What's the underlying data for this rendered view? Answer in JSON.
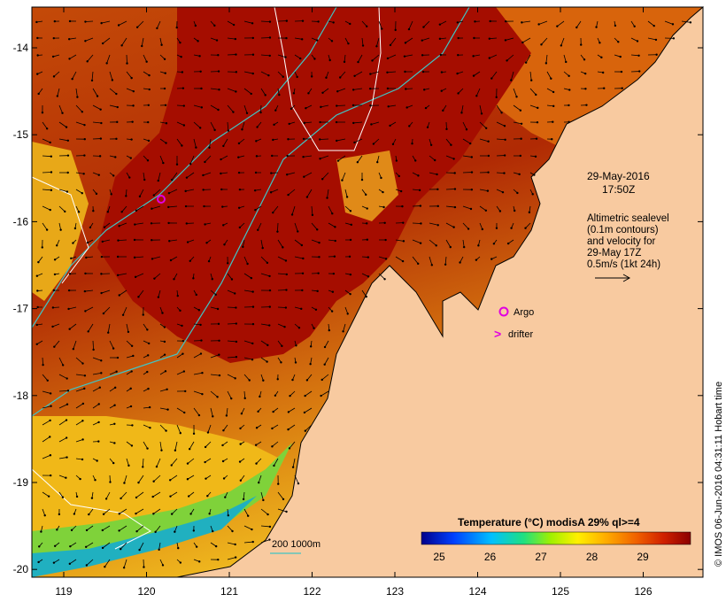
{
  "map": {
    "date_label": "29-May-2016",
    "time_label": "17:50Z",
    "legend_lines": [
      "Altimetric sealevel",
      "(0.1m contours)",
      "and velocity for",
      "29-May 17Z",
      "0.5m/s (1kt 24h)"
    ],
    "argo_label": "Argo",
    "drifter_label": "drifter",
    "drifter_symbol": ">",
    "bathy_label": "200  1000m",
    "credit": "© IMOS 06-Jun-2016 04:31:11 Hobart time",
    "lon_ticks": [
      "119",
      "120",
      "121",
      "122",
      "123",
      "124",
      "125",
      "126"
    ],
    "lat_ticks": [
      "-14",
      "-15",
      "-16",
      "-17",
      "-18",
      "-19",
      "-20"
    ],
    "colorbar": {
      "title": "Temperature (°C) modisA 29% ql>=4",
      "ticks": [
        "25",
        "26",
        "27",
        "28",
        "29"
      ]
    }
  },
  "colors": {
    "land": "#f8caa0",
    "warm": "#a50d00",
    "mid": "#d76a10",
    "cool": "#ffd21e",
    "coast_green": "#7fd23a",
    "contour": "#40c4c4",
    "argo": "#e000e0"
  }
}
